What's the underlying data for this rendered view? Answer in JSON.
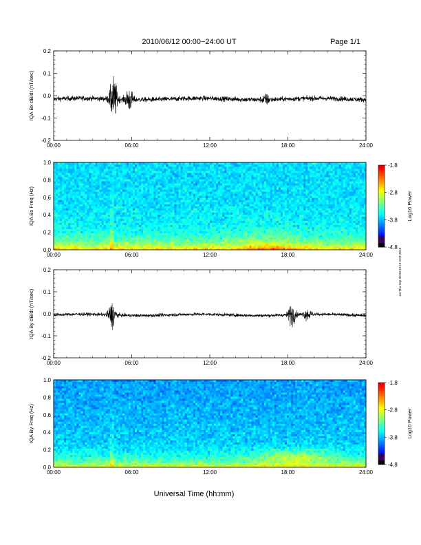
{
  "header": {
    "title": "2010/06/12  00:00−24:00 UT",
    "page": "Page 1/1"
  },
  "side_stamp": "rat Thu Sep 30 09:19:13 CDT 2010",
  "xlabel": "Universal Time (hh:mm)",
  "chart_data": [
    {
      "type": "line",
      "name": "bx_timeseries",
      "ylabel": "IQA Bx dB/dt (nT/sec)",
      "xlim": [
        0,
        24
      ],
      "ylim": [
        -0.2,
        0.2
      ],
      "x_ticks": [
        "00:00",
        "06:00",
        "12:00",
        "18:00",
        "24:00"
      ],
      "y_ticks": [
        "-0.2",
        "-0.1",
        "0.0",
        "0.1",
        "0.2"
      ],
      "baseline": -0.015,
      "noise_amplitude": 0.012,
      "events": [
        {
          "t": 4.6,
          "amp": 0.1
        },
        {
          "t": 5.8,
          "amp": 0.05
        },
        {
          "t": 16.3,
          "amp": 0.02
        }
      ]
    },
    {
      "type": "heatmap",
      "name": "bx_spectrogram",
      "ylabel": "IQA Bx Freq (Hz)",
      "xlim": [
        0,
        24
      ],
      "ylim": [
        0.0,
        1.0
      ],
      "x_ticks": [
        "00:00",
        "06:00",
        "12:00",
        "18:00",
        "24:00"
      ],
      "y_ticks": [
        "0.0",
        "0.2",
        "0.4",
        "0.6",
        "0.8",
        "1.0"
      ],
      "colorbar": {
        "label": "Log10 Power",
        "range": [
          -4.8,
          -1.8
        ],
        "ticks": [
          "-1.8",
          "-2.8",
          "-3.8",
          "-4.8"
        ]
      }
    },
    {
      "type": "line",
      "name": "by_timeseries",
      "ylabel": "IQA By dB/dt (nT/sec)",
      "xlim": [
        0,
        24
      ],
      "ylim": [
        -0.2,
        0.2
      ],
      "x_ticks": [
        "00:00",
        "06:00",
        "12:00",
        "18:00",
        "24:00"
      ],
      "y_ticks": [
        "-0.2",
        "-0.1",
        "0.0",
        "0.1",
        "0.2"
      ],
      "baseline": -0.005,
      "noise_amplitude": 0.008,
      "events": [
        {
          "t": 4.5,
          "amp": 0.06
        },
        {
          "t": 18.3,
          "amp": 0.05
        },
        {
          "t": 19.5,
          "amp": 0.025
        }
      ]
    },
    {
      "type": "heatmap",
      "name": "by_spectrogram",
      "ylabel": "IQA By Freq (Hz)",
      "xlim": [
        0,
        24
      ],
      "ylim": [
        0.0,
        1.0
      ],
      "x_ticks": [
        "00:00",
        "06:00",
        "12:00",
        "18:00",
        "24:00"
      ],
      "y_ticks": [
        "0.0",
        "0.2",
        "0.4",
        "0.6",
        "0.8",
        "1.0"
      ],
      "colorbar": {
        "label": "Log10 Power",
        "range": [
          -4.8,
          -1.8
        ],
        "ticks": [
          "-1.8",
          "-2.8",
          "-3.8",
          "-4.8"
        ]
      }
    }
  ]
}
